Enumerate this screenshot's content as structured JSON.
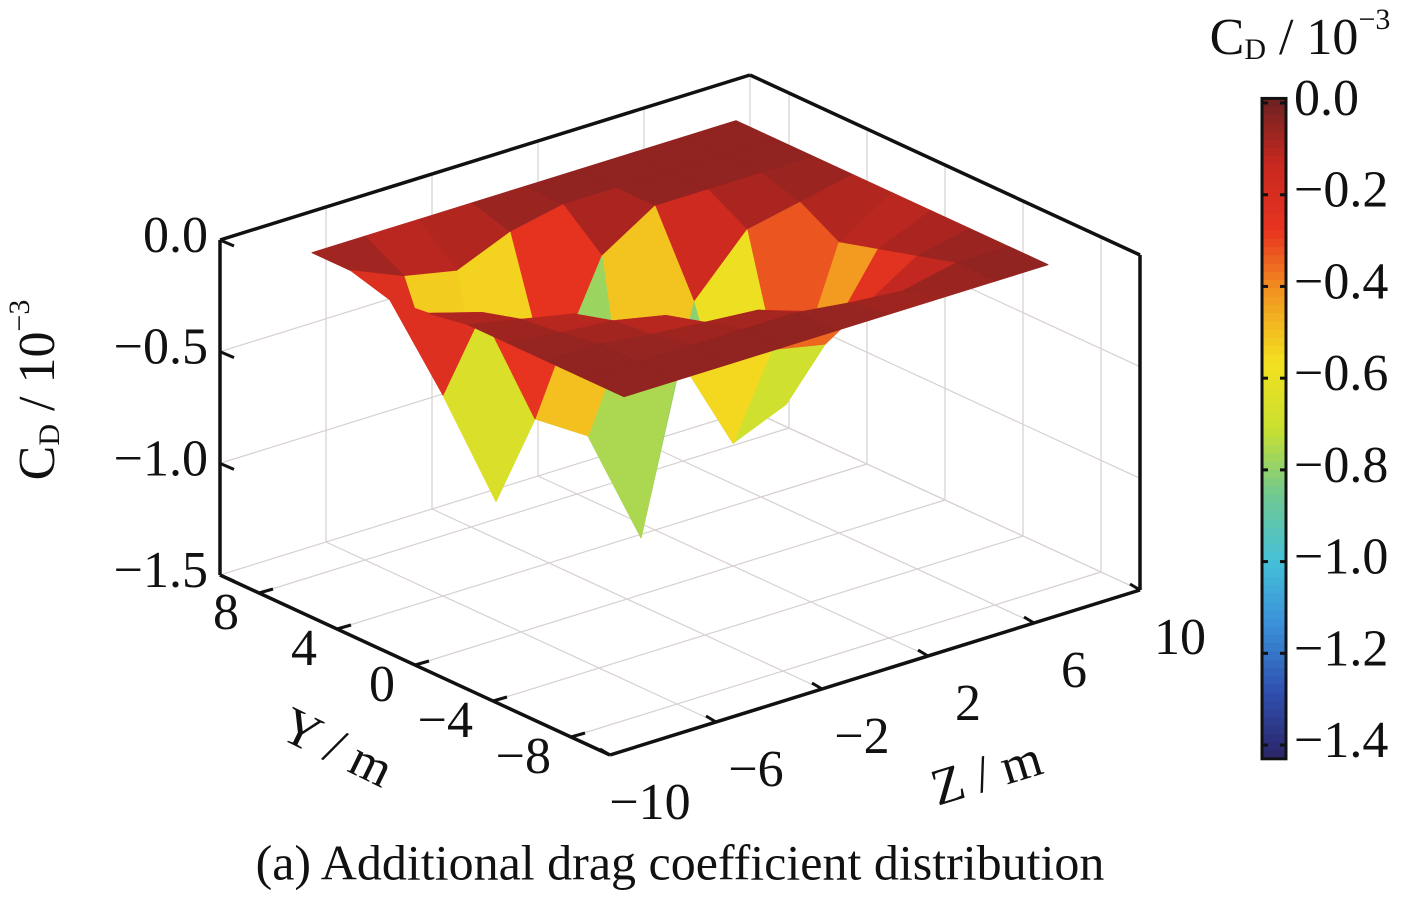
{
  "chart_data": {
    "type": "surface3d",
    "caption": "(a) Additional drag coefficient distribution",
    "y_axis_label": "Y / m",
    "x_axis_label": "Z / m",
    "z_axis_label": {
      "base": "C",
      "sub": "D",
      "rest": " / 10",
      "sup": "−3"
    },
    "colorbar_label": {
      "base": "C",
      "sub": "D",
      "rest": " / 10",
      "sup": "−3"
    },
    "ylim": [
      -10,
      10
    ],
    "yticks": [
      8,
      4,
      0,
      {
        "value": -4,
        "label": "−4"
      },
      {
        "value": -8,
        "label": "−8"
      }
    ],
    "xlim": [
      -10,
      10
    ],
    "xticks": [
      {
        "value": -10,
        "label": "−10"
      },
      {
        "value": -6,
        "label": "−6"
      },
      {
        "value": -2,
        "label": "−2"
      },
      2,
      6,
      10
    ],
    "zlim": [
      -1.5,
      0
    ],
    "zticks": [
      {
        "value": 0,
        "label": "0.0"
      },
      {
        "value": -0.5,
        "label": "−0.5"
      },
      {
        "value": -1,
        "label": "−1.0"
      },
      {
        "value": -1.5,
        "label": "−1.5"
      }
    ],
    "clim": [
      -1.43,
      0.01
    ],
    "cticks": [
      {
        "value": 0,
        "label": "0.0"
      },
      {
        "value": -0.2,
        "label": "−0.2"
      },
      {
        "value": -0.4,
        "label": "−0.4"
      },
      {
        "value": -0.6,
        "label": "−0.6"
      },
      {
        "value": -0.8,
        "label": "−0.8"
      },
      {
        "value": -1,
        "label": "−1.0"
      },
      {
        "value": -1.2,
        "label": "−1.2"
      },
      {
        "value": -1.4,
        "label": "−1.4"
      }
    ],
    "colormap": [
      "#2a2466",
      "#2f4fae",
      "#3a8fd8",
      "#45c0d8",
      "#70c890",
      "#c8e030",
      "#f4e020",
      "#f29a20",
      "#e83420",
      "#c82820",
      "#6a2020"
    ],
    "grid": true,
    "x": [
      -8,
      -6,
      -4,
      -2,
      0,
      2,
      4,
      6,
      8
    ],
    "y": [
      -8,
      -6,
      -4,
      -2,
      0,
      2,
      4,
      6,
      8
    ],
    "z": [
      [
        -0.05,
        -0.05,
        -0.05,
        -0.05,
        -0.05,
        -0.05,
        -0.05,
        -0.05,
        -0.05
      ],
      [
        -0.05,
        -0.05,
        -0.05,
        -0.05,
        -0.05,
        -0.08,
        -0.1,
        -0.05,
        -0.05
      ],
      [
        -0.05,
        -0.05,
        -0.08,
        -0.1,
        -0.12,
        -0.2,
        -0.25,
        -0.1,
        -0.05
      ],
      [
        -0.05,
        -0.08,
        -0.1,
        -0.15,
        -0.3,
        -0.45,
        -0.5,
        -0.15,
        -0.05
      ],
      [
        -0.05,
        -0.1,
        -0.15,
        -0.3,
        -0.5,
        -0.95,
        -0.85,
        -0.2,
        -0.05
      ],
      [
        -0.08,
        -0.15,
        -0.7,
        -0.85,
        -1.38,
        -0.4,
        -0.15,
        -0.1,
        -0.05
      ],
      [
        -0.1,
        -0.6,
        -1.15,
        -0.7,
        -0.2,
        -0.05,
        -0.05,
        -0.05,
        -0.05
      ],
      [
        -0.05,
        -0.15,
        -0.2,
        -0.1,
        -0.05,
        -0.05,
        -0.05,
        -0.05,
        -0.05
      ],
      [
        -0.05,
        -0.05,
        -0.05,
        -0.05,
        -0.05,
        -0.05,
        -0.05,
        -0.05,
        -0.05
      ]
    ]
  }
}
